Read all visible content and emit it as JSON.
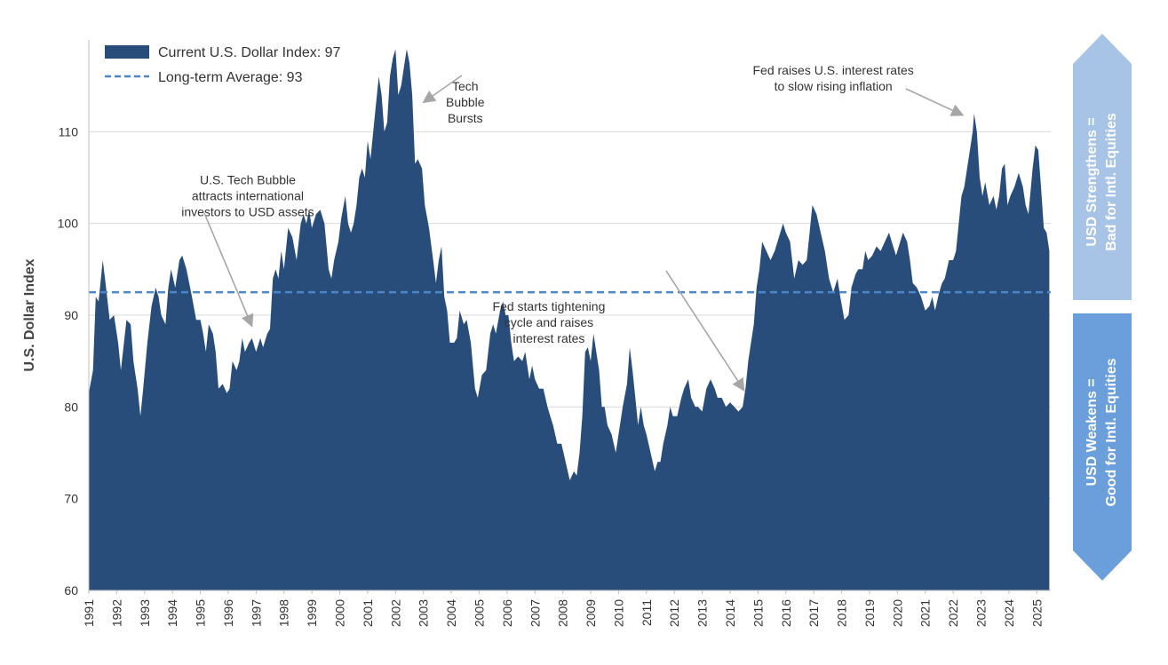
{
  "chart_data": {
    "type": "area",
    "xlabel": "",
    "ylabel": "U.S. Dollar Index",
    "xlim": [
      1991.0,
      2025.5
    ],
    "ylim": [
      60,
      120
    ],
    "yticks": [
      "60",
      "70",
      "80",
      "90",
      "100",
      "110"
    ],
    "xticks": [
      "1991",
      "1992",
      "1993",
      "1994",
      "1995",
      "1996",
      "1997",
      "1998",
      "1999",
      "2000",
      "2001",
      "2002",
      "2003",
      "2004",
      "2005",
      "2006",
      "2007",
      "2008",
      "2009",
      "2010",
      "2011",
      "2012",
      "2013",
      "2014",
      "2015",
      "2016",
      "2017",
      "2018",
      "2019",
      "2020",
      "2021",
      "2022",
      "2023",
      "2024",
      "2025"
    ],
    "grid": "horizontal",
    "legend_position": "top-left",
    "series": [
      {
        "name": "Current U.S. Dollar Index:",
        "current_value": "97",
        "color": "#294d7a",
        "points": [
          [
            1991.0,
            81.5
          ],
          [
            1991.15,
            84
          ],
          [
            1991.25,
            92
          ],
          [
            1991.35,
            91.5
          ],
          [
            1991.5,
            96
          ],
          [
            1991.6,
            93.5
          ],
          [
            1991.75,
            89.5
          ],
          [
            1991.9,
            90
          ],
          [
            1992.05,
            87
          ],
          [
            1992.15,
            84
          ],
          [
            1992.35,
            89.5
          ],
          [
            1992.5,
            89
          ],
          [
            1992.6,
            85
          ],
          [
            1992.75,
            82
          ],
          [
            1992.85,
            79
          ],
          [
            1992.95,
            82
          ],
          [
            1993.1,
            87
          ],
          [
            1993.25,
            91
          ],
          [
            1993.4,
            93
          ],
          [
            1993.5,
            92
          ],
          [
            1993.6,
            90
          ],
          [
            1993.75,
            89
          ],
          [
            1993.85,
            93
          ],
          [
            1993.95,
            95
          ],
          [
            1994.1,
            93
          ],
          [
            1994.25,
            96
          ],
          [
            1994.35,
            96.5
          ],
          [
            1994.5,
            95
          ],
          [
            1994.7,
            92
          ],
          [
            1994.85,
            89.5
          ],
          [
            1995.0,
            89.5
          ],
          [
            1995.1,
            88
          ],
          [
            1995.2,
            86
          ],
          [
            1995.3,
            89
          ],
          [
            1995.45,
            88
          ],
          [
            1995.55,
            86
          ],
          [
            1995.65,
            82
          ],
          [
            1995.8,
            82.5
          ],
          [
            1995.95,
            81.5
          ],
          [
            1996.05,
            82
          ],
          [
            1996.15,
            85
          ],
          [
            1996.3,
            84
          ],
          [
            1996.4,
            85
          ],
          [
            1996.5,
            87.5
          ],
          [
            1996.6,
            86
          ],
          [
            1996.75,
            87
          ],
          [
            1996.85,
            87.5
          ],
          [
            1997.0,
            86
          ],
          [
            1997.15,
            87.5
          ],
          [
            1997.25,
            86.5
          ],
          [
            1997.4,
            88
          ],
          [
            1997.5,
            88.5
          ],
          [
            1997.6,
            94
          ],
          [
            1997.7,
            95
          ],
          [
            1997.8,
            94
          ],
          [
            1997.9,
            97
          ],
          [
            1998.0,
            95
          ],
          [
            1998.15,
            99.5
          ],
          [
            1998.3,
            98.5
          ],
          [
            1998.45,
            96
          ],
          [
            1998.6,
            100
          ],
          [
            1998.7,
            101
          ],
          [
            1998.8,
            100
          ],
          [
            1998.9,
            101.5
          ],
          [
            1999.0,
            99.5
          ],
          [
            1999.15,
            101
          ],
          [
            1999.3,
            101.5
          ],
          [
            1999.45,
            100
          ],
          [
            1999.6,
            95
          ],
          [
            1999.7,
            94
          ],
          [
            1999.8,
            96
          ],
          [
            1999.95,
            98
          ],
          [
            2000.05,
            100.5
          ],
          [
            2000.2,
            103
          ],
          [
            2000.3,
            100
          ],
          [
            2000.4,
            99
          ],
          [
            2000.5,
            100
          ],
          [
            2000.6,
            102
          ],
          [
            2000.7,
            105
          ],
          [
            2000.8,
            106
          ],
          [
            2000.9,
            105
          ],
          [
            2001.0,
            109
          ],
          [
            2001.1,
            107
          ],
          [
            2001.2,
            110
          ],
          [
            2001.3,
            113
          ],
          [
            2001.4,
            116
          ],
          [
            2001.5,
            114
          ],
          [
            2001.6,
            110
          ],
          [
            2001.7,
            111
          ],
          [
            2001.8,
            116
          ],
          [
            2001.9,
            118
          ],
          [
            2002.0,
            119
          ],
          [
            2002.1,
            114
          ],
          [
            2002.2,
            115
          ],
          [
            2002.3,
            117
          ],
          [
            2002.4,
            119
          ],
          [
            2002.5,
            117.5
          ],
          [
            2002.6,
            114
          ],
          [
            2002.7,
            106.5
          ],
          [
            2002.8,
            107
          ],
          [
            2002.95,
            106
          ],
          [
            2003.05,
            102
          ],
          [
            2003.2,
            99.5
          ],
          [
            2003.35,
            96
          ],
          [
            2003.45,
            93.5
          ],
          [
            2003.55,
            96
          ],
          [
            2003.65,
            97.5
          ],
          [
            2003.75,
            92
          ],
          [
            2003.85,
            90.5
          ],
          [
            2003.95,
            87
          ],
          [
            2004.1,
            87
          ],
          [
            2004.2,
            87.5
          ],
          [
            2004.3,
            90.5
          ],
          [
            2004.45,
            89
          ],
          [
            2004.55,
            89.5
          ],
          [
            2004.7,
            87
          ],
          [
            2004.85,
            82
          ],
          [
            2004.95,
            81
          ],
          [
            2005.1,
            83.5
          ],
          [
            2005.25,
            84
          ],
          [
            2005.4,
            88
          ],
          [
            2005.5,
            89
          ],
          [
            2005.6,
            88
          ],
          [
            2005.75,
            90.5
          ],
          [
            2005.85,
            91.5
          ],
          [
            2005.95,
            90
          ],
          [
            2006.05,
            90
          ],
          [
            2006.15,
            87
          ],
          [
            2006.25,
            85
          ],
          [
            2006.4,
            85.5
          ],
          [
            2006.55,
            85
          ],
          [
            2006.65,
            86
          ],
          [
            2006.8,
            83
          ],
          [
            2006.9,
            84.5
          ],
          [
            2007.0,
            83
          ],
          [
            2007.15,
            82
          ],
          [
            2007.3,
            82
          ],
          [
            2007.45,
            80
          ],
          [
            2007.55,
            79
          ],
          [
            2007.65,
            78
          ],
          [
            2007.8,
            76
          ],
          [
            2007.95,
            76
          ],
          [
            2008.1,
            74
          ],
          [
            2008.25,
            72
          ],
          [
            2008.4,
            73
          ],
          [
            2008.5,
            72.5
          ],
          [
            2008.6,
            75
          ],
          [
            2008.7,
            79
          ],
          [
            2008.8,
            86
          ],
          [
            2008.9,
            86.5
          ],
          [
            2009.0,
            85
          ],
          [
            2009.1,
            88
          ],
          [
            2009.2,
            86
          ],
          [
            2009.3,
            84
          ],
          [
            2009.4,
            80
          ],
          [
            2009.5,
            80
          ],
          [
            2009.6,
            78
          ],
          [
            2009.75,
            77
          ],
          [
            2009.9,
            75
          ],
          [
            2010.0,
            77
          ],
          [
            2010.15,
            80
          ],
          [
            2010.3,
            82.5
          ],
          [
            2010.4,
            86.5
          ],
          [
            2010.5,
            84
          ],
          [
            2010.6,
            81
          ],
          [
            2010.7,
            78
          ],
          [
            2010.8,
            80
          ],
          [
            2010.9,
            78
          ],
          [
            2011.0,
            77
          ],
          [
            2011.15,
            75
          ],
          [
            2011.3,
            73
          ],
          [
            2011.4,
            74
          ],
          [
            2011.5,
            74
          ],
          [
            2011.6,
            76
          ],
          [
            2011.75,
            78
          ],
          [
            2011.85,
            80
          ],
          [
            2011.95,
            79
          ],
          [
            2012.1,
            79
          ],
          [
            2012.25,
            81
          ],
          [
            2012.35,
            82
          ],
          [
            2012.5,
            83
          ],
          [
            2012.6,
            81
          ],
          [
            2012.75,
            80
          ],
          [
            2012.85,
            80
          ],
          [
            2013.0,
            79.5
          ],
          [
            2013.15,
            82
          ],
          [
            2013.3,
            83
          ],
          [
            2013.45,
            82
          ],
          [
            2013.55,
            81
          ],
          [
            2013.7,
            81
          ],
          [
            2013.85,
            80
          ],
          [
            2014.0,
            80.5
          ],
          [
            2014.15,
            80
          ],
          [
            2014.3,
            79.5
          ],
          [
            2014.45,
            80
          ],
          [
            2014.55,
            82
          ],
          [
            2014.65,
            85
          ],
          [
            2014.75,
            87
          ],
          [
            2014.85,
            89
          ],
          [
            2014.95,
            93
          ],
          [
            2015.05,
            95
          ],
          [
            2015.15,
            98
          ],
          [
            2015.3,
            97
          ],
          [
            2015.45,
            96
          ],
          [
            2015.6,
            97
          ],
          [
            2015.75,
            98.5
          ],
          [
            2015.9,
            100
          ],
          [
            2016.0,
            99
          ],
          [
            2016.15,
            98
          ],
          [
            2016.3,
            94
          ],
          [
            2016.45,
            96
          ],
          [
            2016.6,
            95.5
          ],
          [
            2016.75,
            96
          ],
          [
            2016.85,
            99
          ],
          [
            2016.95,
            102
          ],
          [
            2017.1,
            101
          ],
          [
            2017.25,
            99
          ],
          [
            2017.4,
            97
          ],
          [
            2017.55,
            94
          ],
          [
            2017.7,
            92.5
          ],
          [
            2017.85,
            94
          ],
          [
            2017.95,
            92
          ],
          [
            2018.1,
            89.5
          ],
          [
            2018.25,
            90
          ],
          [
            2018.35,
            93
          ],
          [
            2018.5,
            94.5
          ],
          [
            2018.6,
            95
          ],
          [
            2018.75,
            95
          ],
          [
            2018.85,
            97
          ],
          [
            2018.95,
            96
          ],
          [
            2019.1,
            96.5
          ],
          [
            2019.25,
            97.5
          ],
          [
            2019.4,
            97
          ],
          [
            2019.55,
            98
          ],
          [
            2019.7,
            99
          ],
          [
            2019.85,
            97.5
          ],
          [
            2019.95,
            96.5
          ],
          [
            2020.1,
            98
          ],
          [
            2020.2,
            99
          ],
          [
            2020.35,
            98
          ],
          [
            2020.45,
            96
          ],
          [
            2020.55,
            93.5
          ],
          [
            2020.7,
            93
          ],
          [
            2020.85,
            92
          ],
          [
            2021.0,
            90.5
          ],
          [
            2021.15,
            91
          ],
          [
            2021.25,
            92
          ],
          [
            2021.35,
            90.5
          ],
          [
            2021.5,
            92.5
          ],
          [
            2021.6,
            93.5
          ],
          [
            2021.7,
            94
          ],
          [
            2021.85,
            96
          ],
          [
            2022.0,
            96
          ],
          [
            2022.1,
            97
          ],
          [
            2022.2,
            100
          ],
          [
            2022.3,
            103
          ],
          [
            2022.4,
            104
          ],
          [
            2022.5,
            106
          ],
          [
            2022.6,
            108
          ],
          [
            2022.7,
            110
          ],
          [
            2022.75,
            112
          ],
          [
            2022.85,
            110
          ],
          [
            2022.95,
            105
          ],
          [
            2023.05,
            103
          ],
          [
            2023.15,
            104.5
          ],
          [
            2023.3,
            102
          ],
          [
            2023.45,
            103
          ],
          [
            2023.55,
            101.5
          ],
          [
            2023.65,
            103
          ],
          [
            2023.75,
            106
          ],
          [
            2023.85,
            106.5
          ],
          [
            2023.95,
            102
          ],
          [
            2024.05,
            103
          ],
          [
            2024.2,
            104
          ],
          [
            2024.35,
            105.5
          ],
          [
            2024.5,
            104
          ],
          [
            2024.6,
            102
          ],
          [
            2024.7,
            101
          ],
          [
            2024.85,
            106
          ],
          [
            2024.95,
            108.5
          ],
          [
            2025.05,
            108
          ],
          [
            2025.15,
            104
          ],
          [
            2025.25,
            99.5
          ],
          [
            2025.35,
            99
          ],
          [
            2025.45,
            97
          ]
        ]
      },
      {
        "name": "Long-term Average:",
        "current_value": "93",
        "value": 92.5,
        "color": "#4a86c8",
        "style": "dashed"
      }
    ],
    "annotations": [
      {
        "lines": [
          "U.S. Tech Bubble",
          "attracts international",
          "investors to USD assets"
        ],
        "text_at": [
          1996.7,
          100.8
        ],
        "arrow_to": [
          1996.85,
          88.8
        ]
      },
      {
        "lines": [
          "Tech",
          "Bubble",
          "Bursts"
        ],
        "text_at": [
          2004.5,
          111
        ],
        "arrow_to": [
          2003.0,
          113.2
        ]
      },
      {
        "lines": [
          "Fed starts tightening",
          "cycle and raises",
          "interest rates"
        ],
        "text_at": [
          2007.5,
          87
        ],
        "arrow_to": [
          2014.5,
          81.8
        ]
      },
      {
        "lines": [
          "Fed raises U.S. interest rates",
          "to slow rising inflation"
        ],
        "text_at": [
          2017.7,
          114.5
        ],
        "arrow_to": [
          2022.35,
          111.8
        ]
      }
    ]
  },
  "side_panels": {
    "top": {
      "lines": [
        "USD Strengthens =",
        "Bad for Intl. Equities"
      ],
      "color": "#a7c3e6"
    },
    "bottom": {
      "lines": [
        "USD Weakens =",
        "Good for Intl. Equities"
      ],
      "color": "#6a9fdc"
    }
  }
}
